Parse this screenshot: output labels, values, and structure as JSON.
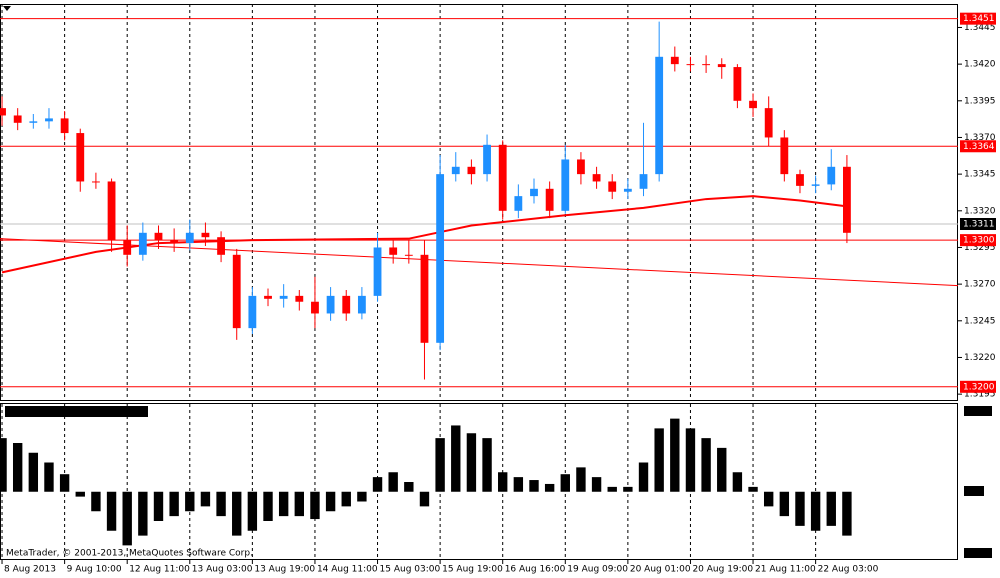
{
  "chart_data": {
    "type": "candlestick",
    "up_color": "#1e90ff",
    "down_color": "#ff0000",
    "xlim": [
      -0.13,
      61.1
    ],
    "xticks": [
      {
        "value": 0,
        "label": "8 Aug 2013"
      },
      {
        "value": 4,
        "label": "9 Aug 10:00"
      },
      {
        "value": 8,
        "label": "12 Aug 11:00"
      },
      {
        "value": 12,
        "label": "13 Aug 03:00"
      },
      {
        "value": 16,
        "label": "13 Aug 19:00"
      },
      {
        "value": 20,
        "label": "14 Aug 11:00"
      },
      {
        "value": 24,
        "label": "15 Aug 03:00"
      },
      {
        "value": 28,
        "label": "15 Aug 19:00"
      },
      {
        "value": 32,
        "label": "16 Aug 16:00"
      },
      {
        "value": 36,
        "label": "19 Aug 09:00"
      },
      {
        "value": 40,
        "label": "20 Aug 01:00"
      },
      {
        "value": 44,
        "label": "20 Aug 19:00"
      },
      {
        "value": 48,
        "label": "21 Aug 11:00"
      },
      {
        "value": 52,
        "label": "22 Aug 03:00"
      }
    ],
    "ylim": [
      1.3191,
      1.3461
    ],
    "yticks": [
      1.3445,
      {
        "value": 1.342,
        "label": "1.3420"
      },
      1.3395,
      {
        "value": 1.337,
        "label": "1.3370"
      },
      1.3345,
      {
        "value": 1.332,
        "label": "1.3320"
      },
      1.3295,
      {
        "value": 1.327,
        "label": "1.3270"
      },
      1.3245,
      {
        "value": 1.322,
        "label": "1.3220"
      },
      1.3195
    ],
    "grid": true,
    "open": [
      1.339,
      1.3385,
      1.338,
      1.3381,
      1.3383,
      1.3373,
      1.334,
      1.334,
      1.33,
      1.329,
      1.3305,
      1.33,
      1.3298,
      1.3305,
      1.3302,
      1.329,
      1.324,
      1.3262,
      1.326,
      1.3262,
      1.3258,
      1.325,
      1.3262,
      1.325,
      1.3262,
      1.3295,
      1.329,
      1.329,
      1.323,
      1.3345,
      1.335,
      1.3345,
      1.3365,
      1.332,
      1.333,
      1.3335,
      1.332,
      1.3355,
      1.3345,
      1.334,
      1.3333,
      1.3335,
      1.3345,
      1.3425,
      1.342,
      1.342,
      1.342,
      1.3418,
      1.3395,
      1.339,
      1.337,
      1.3345,
      1.3337,
      1.3338,
      1.335
    ],
    "high": [
      1.3398,
      1.339,
      1.3386,
      1.339,
      1.3388,
      1.3376,
      1.3346,
      1.3342,
      1.331,
      1.3312,
      1.331,
      1.3308,
      1.3314,
      1.3312,
      1.3306,
      1.3294,
      1.3268,
      1.3267,
      1.327,
      1.3266,
      1.3275,
      1.3268,
      1.3266,
      1.3268,
      1.3305,
      1.33,
      1.33,
      1.33,
      1.3358,
      1.336,
      1.3355,
      1.3372,
      1.3368,
      1.3338,
      1.3342,
      1.334,
      1.3365,
      1.336,
      1.335,
      1.3345,
      1.3342,
      1.338,
      1.3449,
      1.3432,
      1.3425,
      1.3426,
      1.3424,
      1.342,
      1.34,
      1.3398,
      1.3375,
      1.3348,
      1.3344,
      1.3362,
      1.3358
    ],
    "low": [
      1.3378,
      1.3375,
      1.3376,
      1.3376,
      1.3368,
      1.3333,
      1.3335,
      1.3292,
      1.3282,
      1.3286,
      1.3294,
      1.3292,
      1.3293,
      1.3296,
      1.3285,
      1.3232,
      1.3236,
      1.3255,
      1.3254,
      1.3252,
      1.324,
      1.3245,
      1.3245,
      1.3246,
      1.3258,
      1.3284,
      1.3284,
      1.3205,
      1.3225,
      1.334,
      1.3338,
      1.334,
      1.3314,
      1.3315,
      1.3325,
      1.3315,
      1.3318,
      1.3338,
      1.3335,
      1.3328,
      1.3328,
      1.333,
      1.334,
      1.3415,
      1.3415,
      1.3414,
      1.341,
      1.339,
      1.3384,
      1.3364,
      1.334,
      1.3332,
      1.3332,
      1.3334,
      1.3298
    ],
    "close": [
      1.3385,
      1.338,
      1.3381,
      1.3383,
      1.3373,
      1.334,
      1.334,
      1.33,
      1.329,
      1.3305,
      1.33,
      1.3298,
      1.3305,
      1.3302,
      1.329,
      1.324,
      1.3262,
      1.326,
      1.3262,
      1.3258,
      1.325,
      1.3262,
      1.325,
      1.3262,
      1.3295,
      1.329,
      1.329,
      1.323,
      1.3345,
      1.335,
      1.3345,
      1.3365,
      1.332,
      1.333,
      1.3335,
      1.332,
      1.3355,
      1.3345,
      1.334,
      1.3333,
      1.3335,
      1.3345,
      1.3425,
      1.342,
      1.342,
      1.342,
      1.3418,
      1.3395,
      1.339,
      1.337,
      1.3345,
      1.3337,
      1.3338,
      1.335,
      1.3305
    ],
    "moving_average": {
      "color": "#ff0000",
      "x": [
        0,
        6,
        10,
        16,
        26,
        30,
        36,
        41,
        45,
        48,
        51,
        54
      ],
      "values": [
        1.3278,
        1.3292,
        1.3298,
        1.33,
        1.3301,
        1.331,
        1.3317,
        1.3322,
        1.3328,
        1.333,
        1.3327,
        1.3323
      ]
    },
    "trend_line": {
      "color": "#ff0000",
      "x": [
        -0.13,
        61.1
      ],
      "values": [
        1.3301,
        1.3269
      ]
    },
    "levels": [
      {
        "value": 1.3451,
        "label": "1.3451"
      },
      {
        "value": 1.3364,
        "label": "1.3364"
      },
      {
        "value": 1.33,
        "label": "1.3300"
      },
      {
        "value": 1.32,
        "label": "1.3200"
      }
    ],
    "current_price": 1.3311,
    "oscillator": {
      "color": "#000000",
      "ylim": [
        -70,
        90
      ],
      "values": [
        55,
        50,
        40,
        30,
        18,
        -5,
        -20,
        -40,
        -55,
        -45,
        -30,
        -25,
        -20,
        -15,
        -25,
        -45,
        -40,
        -30,
        -25,
        -25,
        -28,
        -20,
        -15,
        -10,
        15,
        20,
        10,
        -15,
        55,
        68,
        60,
        55,
        20,
        15,
        12,
        8,
        18,
        25,
        15,
        5,
        5,
        30,
        65,
        75,
        65,
        55,
        45,
        20,
        5,
        -15,
        -25,
        -35,
        -40,
        -35,
        -45
      ]
    },
    "copyright": "MetaTrader, © 2001-2013, MetaQuotes Software Corp."
  }
}
